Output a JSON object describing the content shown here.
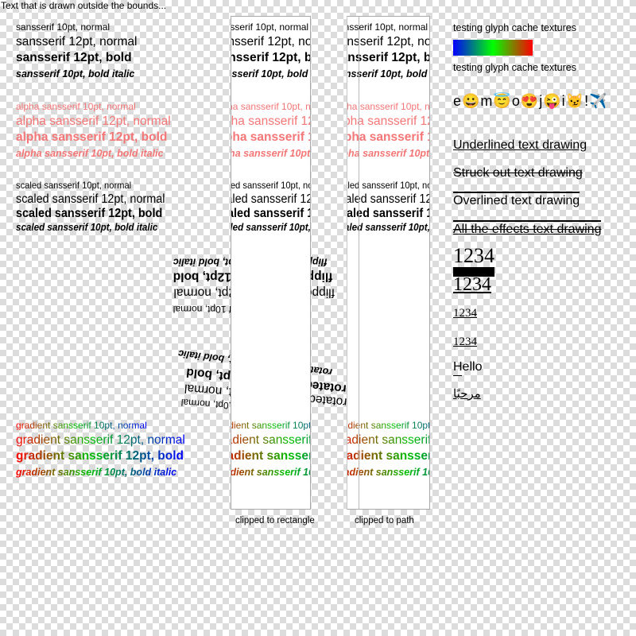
{
  "overflow_label": "Text that is drawn outside the bounds...",
  "sample": {
    "normal": [
      "sansserif 10pt, normal",
      "sansserif 12pt, normal",
      "sansserif 12pt, bold",
      "sansserif 10pt, bold italic"
    ],
    "alpha": [
      "alpha sansserif 10pt, normal",
      "alpha sansserif 12pt, normal",
      "alpha sansserif 12pt, bold",
      "alpha sansserif 10pt, bold italic"
    ],
    "scaled": [
      "scaled sansserif 10pt, normal",
      "scaled sansserif 12pt, normal",
      "scaled sansserif 12pt, bold",
      "scaled sansserif 10pt, bold italic"
    ],
    "flipped": [
      "flipped sansserif 10pt, bold italic",
      "flipped sansserif 12pt, bold",
      "flipped sansserif 12pt, normal",
      "flipped sansserif 10pt, normal"
    ],
    "rotated": [
      "rotated sansserif 10pt, bold italic",
      "rotated sansserif 12pt, bold",
      "rotated sansserif 12pt, normal",
      "rotated sansserif 10pt, normal"
    ],
    "gradient": [
      "gradient sansserif 10pt, normal",
      "gradient sansserif 12pt, normal",
      "gradient sansserif 12pt, bold",
      "gradient sansserif 10pt, bold italic"
    ]
  },
  "clip_labels": {
    "rect": "clipped to rectangle",
    "path": "clipped to path"
  },
  "right": {
    "glyph_cache_1": "testing glyph cache textures",
    "glyph_cache_2": "testing glyph cache textures",
    "emoji_line": "e😀m😇o😍j😜i😼!✈️",
    "underlined": "Underlined text drawing",
    "struck": "Struck out text drawing",
    "overlined": "Overlined text drawing",
    "all_effects": "All the effects text drawing",
    "num1": "1234",
    "num2": "1234",
    "num3": "1234",
    "num4": "1234",
    "hello": "Hello",
    "arabic": "مرحبًا"
  },
  "colors": {
    "alpha_text": "#f47676",
    "gradient_bar": [
      "#0000ff",
      "#00ff00",
      "#ff0000"
    ]
  }
}
